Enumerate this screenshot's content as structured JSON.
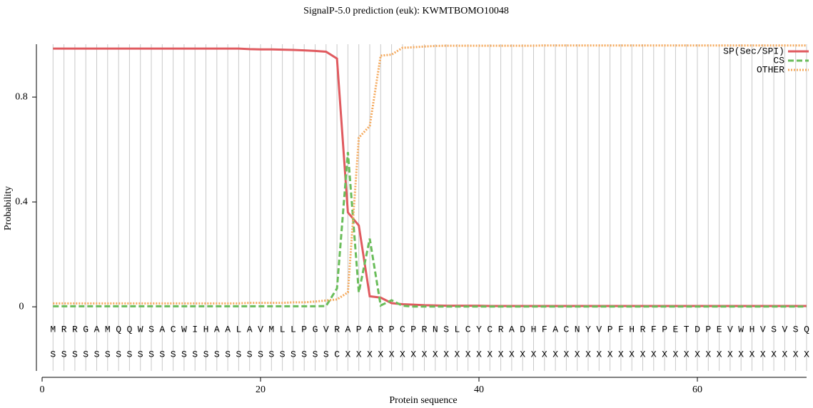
{
  "chart_data": {
    "type": "line",
    "title": "SignalP-5.0 prediction (euk):  KWMTBOMO10048",
    "xlabel": "Protein sequence",
    "ylabel": "Probability",
    "x": [
      1,
      2,
      3,
      4,
      5,
      6,
      7,
      8,
      9,
      10,
      11,
      12,
      13,
      14,
      15,
      16,
      17,
      18,
      19,
      20,
      21,
      22,
      23,
      24,
      25,
      26,
      27,
      28,
      29,
      30,
      31,
      32,
      33,
      34,
      35,
      36,
      37,
      38,
      39,
      40,
      41,
      42,
      43,
      44,
      45,
      46,
      47,
      48,
      49,
      50,
      51,
      52,
      53,
      54,
      55,
      56,
      57,
      58,
      59,
      60,
      61,
      62,
      63,
      64,
      65,
      66,
      67,
      68,
      69,
      70
    ],
    "residues": [
      "M",
      "R",
      "R",
      "G",
      "A",
      "M",
      "Q",
      "Q",
      "W",
      "S",
      "A",
      "C",
      "W",
      "I",
      "H",
      "A",
      "A",
      "L",
      "A",
      "V",
      "M",
      "L",
      "L",
      "P",
      "G",
      "V",
      "R",
      "A",
      "P",
      "A",
      "R",
      "P",
      "C",
      "P",
      "R",
      "N",
      "S",
      "L",
      "C",
      "Y",
      "C",
      "R",
      "A",
      "D",
      "H",
      "F",
      "A",
      "C",
      "N",
      "Y",
      "V",
      "P",
      "F",
      "H",
      "R",
      "F",
      "P",
      "E",
      "T",
      "D",
      "P",
      "E",
      "V",
      "W",
      "H",
      "V",
      "S",
      "V",
      "S",
      "Q"
    ],
    "annotations": [
      "S",
      "S",
      "S",
      "S",
      "S",
      "S",
      "S",
      "S",
      "S",
      "S",
      "S",
      "S",
      "S",
      "S",
      "S",
      "S",
      "S",
      "S",
      "S",
      "S",
      "S",
      "S",
      "S",
      "S",
      "S",
      "S",
      "C",
      "X",
      "X",
      "X",
      "X",
      "X",
      "X",
      "X",
      "X",
      "X",
      "X",
      "X",
      "X",
      "X",
      "X",
      "X",
      "X",
      "X",
      "X",
      "X",
      "X",
      "X",
      "X",
      "X",
      "X",
      "X",
      "X",
      "X",
      "X",
      "X",
      "X",
      "X",
      "X",
      "X",
      "X",
      "X",
      "X",
      "X",
      "X",
      "X",
      "X",
      "X",
      "X",
      "X"
    ],
    "series": [
      {
        "name": "SP(Sec/SPI)",
        "color": "#e05a5f",
        "dash": "solid",
        "values": [
          0.985,
          0.985,
          0.985,
          0.985,
          0.985,
          0.985,
          0.985,
          0.985,
          0.985,
          0.985,
          0.985,
          0.985,
          0.985,
          0.985,
          0.985,
          0.985,
          0.985,
          0.985,
          0.983,
          0.982,
          0.982,
          0.981,
          0.98,
          0.978,
          0.976,
          0.973,
          0.947,
          0.36,
          0.31,
          0.04,
          0.035,
          0.014,
          0.01,
          0.008,
          0.006,
          0.005,
          0.004,
          0.004,
          0.004,
          0.004,
          0.003,
          0.003,
          0.003,
          0.003,
          0.003,
          0.003,
          0.003,
          0.003,
          0.003,
          0.003,
          0.003,
          0.003,
          0.003,
          0.003,
          0.003,
          0.003,
          0.003,
          0.003,
          0.003,
          0.003,
          0.003,
          0.003,
          0.003,
          0.003,
          0.003,
          0.003,
          0.003,
          0.003,
          0.003,
          0.003
        ]
      },
      {
        "name": "CS",
        "color": "#6abd5a",
        "dash": "dashed",
        "values": [
          0.002,
          0.002,
          0.002,
          0.002,
          0.002,
          0.002,
          0.002,
          0.002,
          0.002,
          0.002,
          0.002,
          0.002,
          0.002,
          0.002,
          0.002,
          0.002,
          0.002,
          0.002,
          0.002,
          0.002,
          0.002,
          0.002,
          0.002,
          0.002,
          0.002,
          0.003,
          0.07,
          0.59,
          0.055,
          0.26,
          0.005,
          0.025,
          0.004,
          0.001,
          0.001,
          0.001,
          0.001,
          0.001,
          0.001,
          0.001,
          0.001,
          0.001,
          0.001,
          0.001,
          0.001,
          0.001,
          0.001,
          0.001,
          0.001,
          0.001,
          0.001,
          0.001,
          0.001,
          0.001,
          0.001,
          0.001,
          0.001,
          0.001,
          0.001,
          0.001,
          0.001,
          0.001,
          0.001,
          0.001,
          0.001,
          0.001,
          0.001,
          0.001,
          0.001,
          0.001
        ]
      },
      {
        "name": "OTHER",
        "color": "#f5a95c",
        "dash": "dotted",
        "values": [
          0.013,
          0.013,
          0.013,
          0.013,
          0.013,
          0.013,
          0.013,
          0.013,
          0.013,
          0.013,
          0.013,
          0.013,
          0.013,
          0.013,
          0.013,
          0.013,
          0.013,
          0.013,
          0.015,
          0.015,
          0.015,
          0.015,
          0.017,
          0.017,
          0.02,
          0.024,
          0.028,
          0.055,
          0.645,
          0.69,
          0.958,
          0.962,
          0.988,
          0.99,
          0.993,
          0.995,
          0.996,
          0.996,
          0.996,
          0.996,
          0.996,
          0.996,
          0.996,
          0.996,
          0.996,
          0.997,
          0.997,
          0.997,
          0.997,
          0.997,
          0.997,
          0.997,
          0.997,
          0.997,
          0.997,
          0.997,
          0.997,
          0.997,
          0.997,
          0.997,
          0.997,
          0.997,
          0.997,
          0.997,
          0.997,
          0.997,
          0.997,
          0.997,
          0.997,
          0.997
        ]
      }
    ],
    "xlim": [
      0,
      70
    ],
    "xticks": [
      0,
      20,
      40,
      60
    ],
    "ylim": [
      -0.25,
      1.0
    ],
    "yticks": [
      0,
      0.4,
      0.8
    ],
    "grid": true,
    "legend": "upper right"
  }
}
